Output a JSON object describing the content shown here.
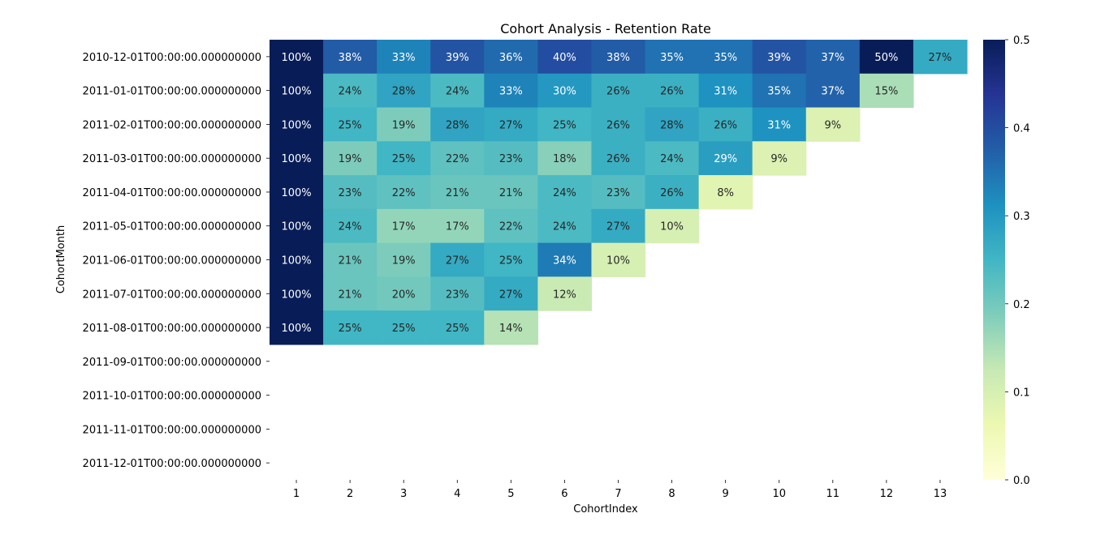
{
  "chart_data": {
    "type": "heatmap",
    "title": "Cohort Analysis - Retention Rate",
    "xlabel": "CohortIndex",
    "ylabel": "CohortMonth",
    "x_categories": [
      "1",
      "2",
      "3",
      "4",
      "5",
      "6",
      "7",
      "8",
      "9",
      "10",
      "11",
      "12",
      "13"
    ],
    "y_categories": [
      "2010-12-01T00:00:00.000000000",
      "2011-01-01T00:00:00.000000000",
      "2011-02-01T00:00:00.000000000",
      "2011-03-01T00:00:00.000000000",
      "2011-04-01T00:00:00.000000000",
      "2011-05-01T00:00:00.000000000",
      "2011-06-01T00:00:00.000000000",
      "2011-07-01T00:00:00.000000000",
      "2011-08-01T00:00:00.000000000",
      "2011-09-01T00:00:00.000000000",
      "2011-10-01T00:00:00.000000000",
      "2011-11-01T00:00:00.000000000",
      "2011-12-01T00:00:00.000000000"
    ],
    "values": [
      [
        1.0,
        0.38,
        0.33,
        0.39,
        0.36,
        0.4,
        0.38,
        0.35,
        0.35,
        0.39,
        0.37,
        0.5,
        0.27
      ],
      [
        1.0,
        0.24,
        0.28,
        0.24,
        0.33,
        0.3,
        0.26,
        0.26,
        0.31,
        0.35,
        0.37,
        0.15,
        null
      ],
      [
        1.0,
        0.25,
        0.19,
        0.28,
        0.27,
        0.25,
        0.26,
        0.28,
        0.26,
        0.31,
        0.09,
        null,
        null
      ],
      [
        1.0,
        0.19,
        0.25,
        0.22,
        0.23,
        0.18,
        0.26,
        0.24,
        0.29,
        0.09,
        null,
        null,
        null
      ],
      [
        1.0,
        0.23,
        0.22,
        0.21,
        0.21,
        0.24,
        0.23,
        0.26,
        0.08,
        null,
        null,
        null,
        null
      ],
      [
        1.0,
        0.24,
        0.17,
        0.17,
        0.22,
        0.24,
        0.27,
        0.1,
        null,
        null,
        null,
        null,
        null
      ],
      [
        1.0,
        0.21,
        0.19,
        0.27,
        0.25,
        0.34,
        0.1,
        null,
        null,
        null,
        null,
        null,
        null
      ],
      [
        1.0,
        0.21,
        0.2,
        0.23,
        0.27,
        0.12,
        null,
        null,
        null,
        null,
        null,
        null,
        null
      ],
      [
        1.0,
        0.25,
        0.25,
        0.25,
        0.14,
        null,
        null,
        null,
        null,
        null,
        null,
        null,
        null
      ],
      [
        null,
        null,
        null,
        null,
        null,
        null,
        null,
        null,
        null,
        null,
        null,
        null,
        null
      ],
      [
        null,
        null,
        null,
        null,
        null,
        null,
        null,
        null,
        null,
        null,
        null,
        null,
        null
      ],
      [
        null,
        null,
        null,
        null,
        null,
        null,
        null,
        null,
        null,
        null,
        null,
        null,
        null
      ],
      [
        null,
        null,
        null,
        null,
        null,
        null,
        null,
        null,
        null,
        null,
        null,
        null,
        null
      ]
    ],
    "labels": [
      [
        "100%",
        "38%",
        "33%",
        "39%",
        "36%",
        "40%",
        "38%",
        "35%",
        "35%",
        "39%",
        "37%",
        "50%",
        "27%"
      ],
      [
        "100%",
        "24%",
        "28%",
        "24%",
        "33%",
        "30%",
        "26%",
        "26%",
        "31%",
        "35%",
        "37%",
        "15%",
        null
      ],
      [
        "100%",
        "25%",
        "19%",
        "28%",
        "27%",
        "25%",
        "26%",
        "28%",
        "26%",
        "31%",
        "9%",
        null,
        null
      ],
      [
        "100%",
        "19%",
        "25%",
        "22%",
        "23%",
        "18%",
        "26%",
        "24%",
        "29%",
        "9%",
        null,
        null,
        null
      ],
      [
        "100%",
        "23%",
        "22%",
        "21%",
        "21%",
        "24%",
        "23%",
        "26%",
        "8%",
        null,
        null,
        null,
        null
      ],
      [
        "100%",
        "24%",
        "17%",
        "17%",
        "22%",
        "24%",
        "27%",
        "10%",
        null,
        null,
        null,
        null,
        null
      ],
      [
        "100%",
        "21%",
        "19%",
        "27%",
        "25%",
        "34%",
        "10%",
        null,
        null,
        null,
        null,
        null,
        null
      ],
      [
        "100%",
        "21%",
        "20%",
        "23%",
        "27%",
        "12%",
        null,
        null,
        null,
        null,
        null,
        null,
        null
      ],
      [
        "100%",
        "25%",
        "25%",
        "25%",
        "14%",
        null,
        null,
        null,
        null,
        null,
        null,
        null,
        null
      ],
      [
        null,
        null,
        null,
        null,
        null,
        null,
        null,
        null,
        null,
        null,
        null,
        null,
        null
      ],
      [
        null,
        null,
        null,
        null,
        null,
        null,
        null,
        null,
        null,
        null,
        null,
        null,
        null
      ],
      [
        null,
        null,
        null,
        null,
        null,
        null,
        null,
        null,
        null,
        null,
        null,
        null,
        null
      ],
      [
        null,
        null,
        null,
        null,
        null,
        null,
        null,
        null,
        null,
        null,
        null,
        null,
        null
      ]
    ],
    "vmin": 0.0,
    "vmax": 0.5,
    "colormap": "YlGnBu",
    "colorbar_ticks": [
      "0.0",
      "0.1",
      "0.2",
      "0.3",
      "0.4",
      "0.5"
    ]
  }
}
